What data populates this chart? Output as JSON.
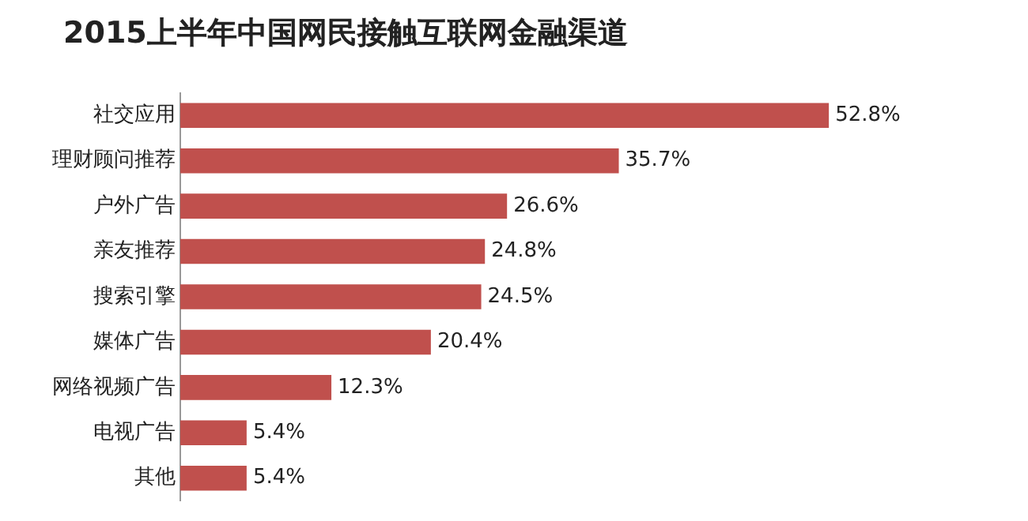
{
  "chart_data": {
    "type": "bar",
    "orientation": "horizontal",
    "title": "2015上半年中国网民接触互联网金融渠道",
    "categories": [
      "社交应用",
      "理财顾问推荐",
      "户外广告",
      "亲友推荐",
      "搜索引擎",
      "媒体广告",
      "网络视频广告",
      "电视广告",
      "其他"
    ],
    "values": [
      52.8,
      35.7,
      26.6,
      24.8,
      24.5,
      20.4,
      12.3,
      5.4,
      5.4
    ],
    "value_labels": [
      "52.8%",
      "35.7%",
      "26.6%",
      "24.8%",
      "24.5%",
      "20.4%",
      "12.3%",
      "5.4%",
      "5.4%"
    ],
    "color": "#c0504d",
    "tick_labels": "y"
  }
}
